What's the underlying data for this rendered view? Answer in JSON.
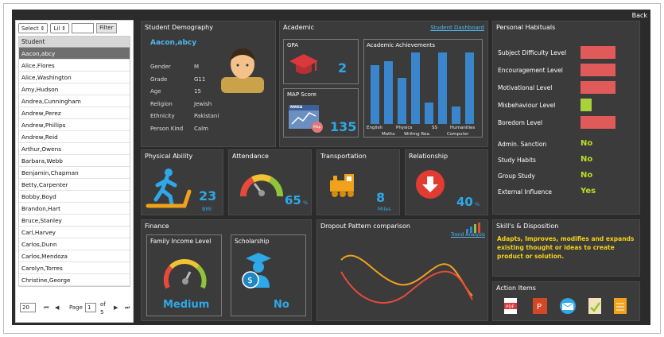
{
  "back_label": "Back",
  "sidebar": {
    "filters": {
      "select1": "Select",
      "select2": "Lil",
      "filter_label": "Filter"
    },
    "list_header": "Student",
    "students": [
      "Aacon,abcy",
      "Alice,Flores",
      "Alice,Washington",
      "Amy,Hudson",
      "Andrea,Cunningham",
      "Andrew,Perez",
      "Andrew,Phillips",
      "Andrew,Reid",
      "Arthur,Owens",
      "Barbara,Webb",
      "Benjamin,Chapman",
      "Betty,Carpenter",
      "Bobby,Boyd",
      "Brandon,Hart",
      "Bruce,Stanley",
      "Carl,Harvey",
      "Carlos,Dunn",
      "Carlos,Mendoza",
      "Carolyn,Torres",
      "Christine,George"
    ],
    "pager": {
      "page_size": "20",
      "page_label": "Page",
      "page_value": "1",
      "of_label": "of",
      "total_pages": "5"
    }
  },
  "demography": {
    "title": "Student Demography",
    "name": "Aacon,abcy",
    "fields": [
      {
        "label": "Gender",
        "value": "M"
      },
      {
        "label": "Grade",
        "value": "G11"
      },
      {
        "label": "Age",
        "value": "15"
      },
      {
        "label": "Religion",
        "value": "Jewish"
      },
      {
        "label": "Ethnicity",
        "value": "Pakistani"
      },
      {
        "label": "Person Kind",
        "value": "Calm"
      }
    ]
  },
  "academic": {
    "title": "Academic",
    "dashboard_link": "Student Dashboard",
    "gpa": {
      "title": "GPA",
      "value": "2"
    },
    "map": {
      "title": "MAP Score",
      "value": "135",
      "badge": "NWEA",
      "tag": "Map"
    },
    "achievements": {
      "title": "Academic Achievements",
      "labels_top": [
        "English",
        "Physics",
        "SS",
        "Humanities"
      ],
      "labels_bottom": [
        "Maths",
        "Writing Rea.",
        "Computer"
      ],
      "values": [
        0.82,
        0.88,
        0.65,
        1.0,
        0.3,
        1.0,
        0.25,
        1.0
      ]
    }
  },
  "habituals": {
    "title": "Personal Habituals",
    "bars": [
      {
        "label": "Subject Difficulty Level",
        "color": "#e05a5a",
        "level": "red"
      },
      {
        "label": "Encouragement Level",
        "color": "#e05a5a",
        "level": "red"
      },
      {
        "label": "Motivational Level",
        "color": "#e05a5a",
        "level": "red"
      },
      {
        "label": "Misbehaviour Level",
        "color": "#a8d23a",
        "level": "green"
      },
      {
        "label": "Boredom Level",
        "color": "#e05a5a",
        "level": "red"
      }
    ],
    "flags": [
      {
        "label": "Admin. Sanction",
        "value": "No"
      },
      {
        "label": "Study Habits",
        "value": "No"
      },
      {
        "label": "Group Study",
        "value": "No"
      },
      {
        "label": "External Influence",
        "value": "Yes"
      }
    ]
  },
  "physical": {
    "title": "Physical Ability",
    "value": "23",
    "unit": "BMI"
  },
  "attendance": {
    "title": "Attendance",
    "value": "65",
    "unit": "%"
  },
  "transportation": {
    "title": "Transportation",
    "value": "8",
    "unit": "Miles"
  },
  "relationship": {
    "title": "Relationship",
    "value": "40",
    "unit": "%"
  },
  "finance": {
    "title": "Finance",
    "income": {
      "title": "Family Income Level",
      "value": "Medium"
    },
    "scholarship": {
      "title": "Scholarship",
      "value": "No"
    }
  },
  "dropout": {
    "title": "Dropout Pattern comparison",
    "link": "Trend Analysis"
  },
  "skills": {
    "title": "Skill's & Disposition",
    "text": "Adapts, Improves, modifies and expands existing thought or ideas to create product or solution."
  },
  "actions": {
    "title": "Action Items",
    "icons": [
      "pdf-icon",
      "powerpoint-icon",
      "email-icon",
      "certificate-icon",
      "document-icon"
    ]
  }
}
